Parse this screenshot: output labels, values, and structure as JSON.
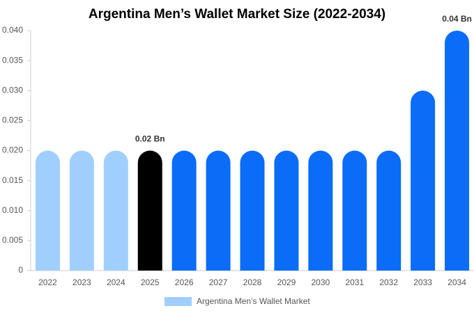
{
  "chart_data": {
    "type": "bar",
    "title": "Argentina Men’s Wallet Market Size (2022-2034)",
    "categories": [
      "2022",
      "2023",
      "2024",
      "2025",
      "2026",
      "2027",
      "2028",
      "2029",
      "2030",
      "2031",
      "2032",
      "2033",
      "2034"
    ],
    "series": [
      {
        "name": "Argentina Men’s Wallet Market",
        "color": "#a0cfff",
        "values": [
          0.02,
          0.02,
          0.02,
          0.02,
          0.02,
          0.02,
          0.02,
          0.02,
          0.02,
          0.02,
          0.02,
          0.03,
          0.04
        ],
        "colors": [
          "#a0cfff",
          "#a0cfff",
          "#a0cfff",
          "#000000",
          "#0a6cf7",
          "#0a6cf7",
          "#0a6cf7",
          "#0a6cf7",
          "#0a6cf7",
          "#0a6cf7",
          "#0a6cf7",
          "#0a6cf7",
          "#0a6cf7"
        ],
        "value_labels": [
          null,
          null,
          null,
          "0.02 Bn",
          null,
          null,
          null,
          null,
          null,
          null,
          null,
          null,
          "0.04 Bn"
        ]
      }
    ],
    "ylim": [
      0,
      0.04
    ],
    "yticks": [
      0,
      0.005,
      {
        "value": 0.01,
        "label": "0.010"
      },
      0.015,
      {
        "value": 0.02,
        "label": "0.020"
      },
      0.025,
      {
        "value": 0.03,
        "label": "0.030"
      },
      0.035,
      {
        "value": 0.04,
        "label": "0.040"
      }
    ],
    "legend": "bottom"
  }
}
